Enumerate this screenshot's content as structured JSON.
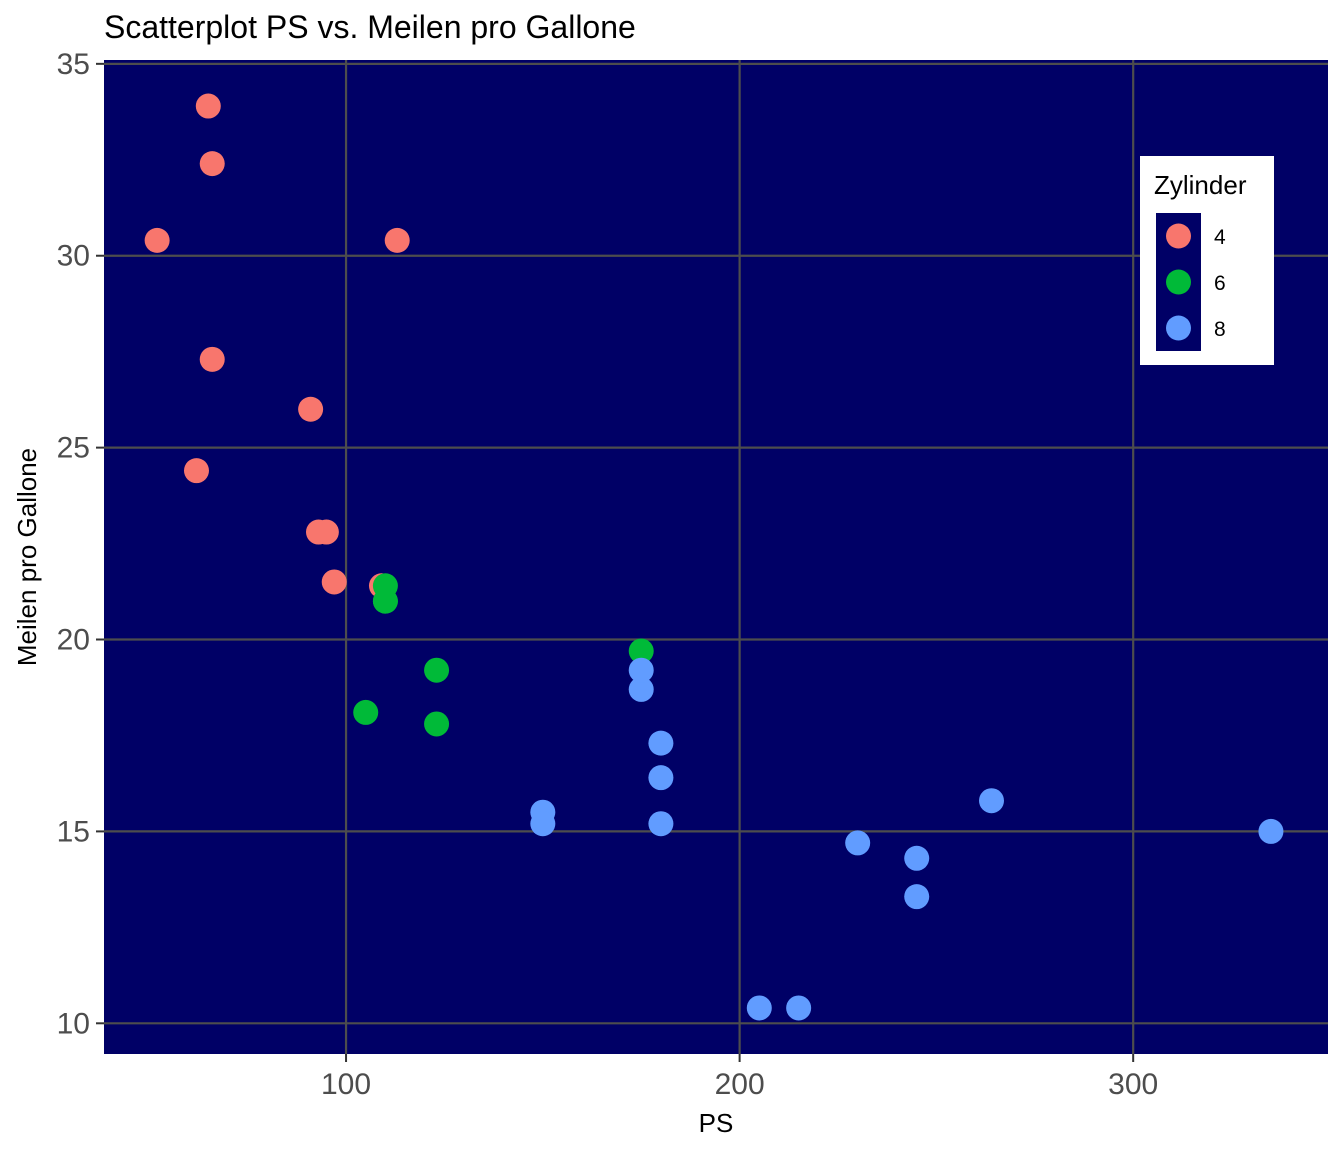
{
  "chart_data": {
    "type": "scatter",
    "title": "Scatterplot PS vs. Meilen pro Gallone",
    "xlabel": "PS",
    "ylabel": "Meilen pro Gallone",
    "xlim": [
      38.5,
      349.5
    ],
    "ylim": [
      9.2,
      35.1
    ],
    "x_ticks": [
      100,
      200,
      300
    ],
    "y_ticks": [
      10,
      15,
      20,
      25,
      30,
      35
    ],
    "grid": true,
    "legend_position": "top-right",
    "legend": {
      "title": "Zylinder",
      "entries": [
        {
          "label": "4",
          "color": "#F8766D"
        },
        {
          "label": "6",
          "color": "#00BA38"
        },
        {
          "label": "8",
          "color": "#619CFF"
        }
      ]
    },
    "colors": {
      "panel_background": "#000066",
      "grid": "#4d4d4d"
    },
    "series": [
      {
        "name": "4",
        "color": "#F8766D",
        "points": [
          {
            "x": 93,
            "y": 22.8
          },
          {
            "x": 62,
            "y": 24.4
          },
          {
            "x": 95,
            "y": 22.8
          },
          {
            "x": 66,
            "y": 32.4
          },
          {
            "x": 52,
            "y": 30.4
          },
          {
            "x": 65,
            "y": 33.9
          },
          {
            "x": 97,
            "y": 21.5
          },
          {
            "x": 66,
            "y": 27.3
          },
          {
            "x": 91,
            "y": 26.0
          },
          {
            "x": 113,
            "y": 30.4
          },
          {
            "x": 109,
            "y": 21.4
          }
        ]
      },
      {
        "name": "6",
        "color": "#00BA38",
        "points": [
          {
            "x": 110,
            "y": 21.0
          },
          {
            "x": 110,
            "y": 21.4
          },
          {
            "x": 110,
            "y": 21.0
          },
          {
            "x": 105,
            "y": 18.1
          },
          {
            "x": 123,
            "y": 19.2
          },
          {
            "x": 123,
            "y": 17.8
          },
          {
            "x": 175,
            "y": 19.7
          }
        ]
      },
      {
        "name": "8",
        "color": "#619CFF",
        "points": [
          {
            "x": 175,
            "y": 18.7
          },
          {
            "x": 245,
            "y": 14.3
          },
          {
            "x": 180,
            "y": 16.4
          },
          {
            "x": 180,
            "y": 17.3
          },
          {
            "x": 180,
            "y": 15.2
          },
          {
            "x": 205,
            "y": 10.4
          },
          {
            "x": 215,
            "y": 10.4
          },
          {
            "x": 230,
            "y": 14.7
          },
          {
            "x": 150,
            "y": 15.5
          },
          {
            "x": 150,
            "y": 15.2
          },
          {
            "x": 245,
            "y": 13.3
          },
          {
            "x": 175,
            "y": 19.2
          },
          {
            "x": 264,
            "y": 15.8
          },
          {
            "x": 335,
            "y": 15.0
          }
        ]
      }
    ]
  }
}
